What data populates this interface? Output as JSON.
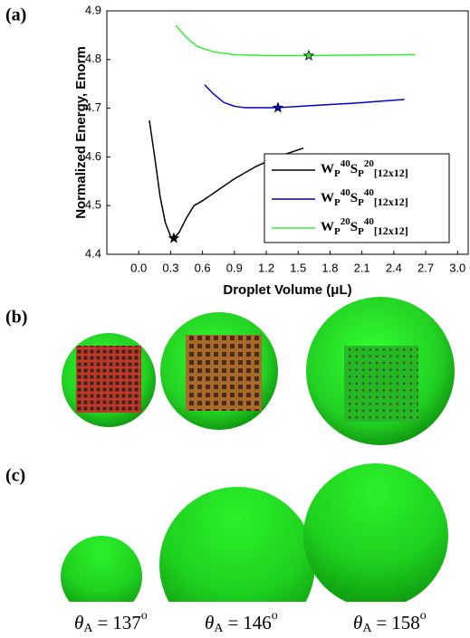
{
  "chart_data": {
    "type": "line",
    "panel_label": "(a)",
    "x_label": "Droplet Volume (μL)",
    "y_label": "Normalized Energy, Enorm",
    "xlim": [
      -0.3,
      3.1
    ],
    "ylim": [
      4.4,
      4.9
    ],
    "xticks": [
      {
        "value": 0.0,
        "label": "0.0"
      },
      0.3,
      0.6,
      0.9,
      1.2,
      1.5,
      1.8,
      2.1,
      2.4,
      2.7,
      {
        "value": 3.0,
        "label": "3.0"
      }
    ],
    "yticks": [
      4.4,
      4.5,
      4.6,
      4.7,
      4.8,
      4.9
    ],
    "legend": "lower right",
    "series": [
      {
        "name": "WP40SP20[12x12]",
        "color": "#000000",
        "x": [
          0.1,
          0.15,
          0.2,
          0.25,
          0.3,
          0.33,
          0.38,
          0.45,
          0.52,
          0.6,
          0.7,
          0.9,
          1.1,
          1.3,
          1.55
        ],
        "values": [
          4.675,
          4.6,
          4.52,
          4.465,
          4.437,
          4.433,
          4.445,
          4.475,
          4.5,
          4.51,
          4.525,
          4.555,
          4.58,
          4.6,
          4.618
        ],
        "min": {
          "x": 0.33,
          "y": 4.433
        }
      },
      {
        "name": "WP40SP40[12x12]",
        "color": "#0000cc",
        "x": [
          0.62,
          0.7,
          0.8,
          0.9,
          1.0,
          1.3,
          1.6,
          2.0,
          2.5
        ],
        "values": [
          4.748,
          4.73,
          4.712,
          4.704,
          4.701,
          4.701,
          4.705,
          4.71,
          4.718
        ],
        "min": {
          "x": 1.31,
          "y": 4.701
        }
      },
      {
        "name": "WP20SP40[12x12]",
        "color": "#33ee33",
        "x": [
          0.35,
          0.45,
          0.55,
          0.7,
          0.9,
          1.2,
          1.6,
          2.0,
          2.6
        ],
        "values": [
          4.87,
          4.845,
          4.827,
          4.816,
          4.81,
          4.808,
          4.808,
          4.809,
          4.81
        ],
        "min": {
          "x": 1.6,
          "y": 4.808
        }
      }
    ]
  },
  "panel_b": {
    "label": "(b)"
  },
  "panel_c": {
    "label": "(c)",
    "angles": [
      {
        "symbol": "θ",
        "subscript": "A",
        "equals": "=",
        "angle": "137",
        "degree": "o"
      },
      {
        "symbol": "θ",
        "subscript": "A",
        "equals": "=",
        "angle": "146",
        "degree": "o"
      },
      {
        "symbol": "θ",
        "subscript": "A",
        "equals": "=",
        "angle": "158",
        "degree": "o"
      }
    ]
  }
}
